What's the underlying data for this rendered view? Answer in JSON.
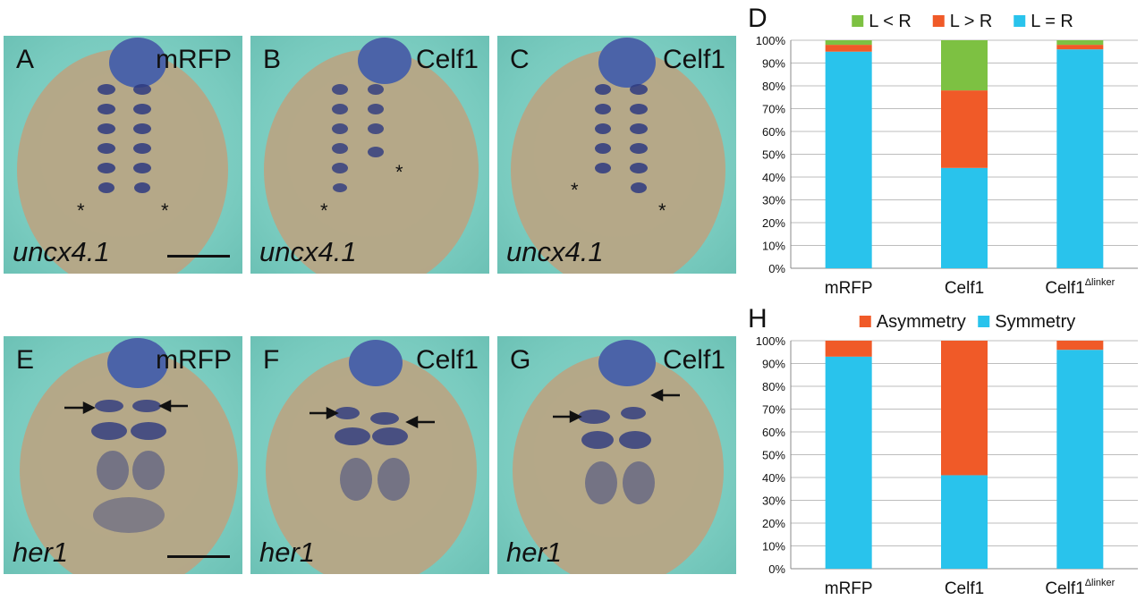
{
  "panels_top": [
    {
      "letter": "A",
      "condition": "mRFP",
      "gene": "uncx4.1",
      "scale_bar": true
    },
    {
      "letter": "B",
      "condition": "Celf1",
      "gene": "uncx4.1",
      "scale_bar": false
    },
    {
      "letter": "C",
      "condition": "Celf1",
      "gene": "uncx4.1",
      "scale_bar": false
    }
  ],
  "panels_bottom": [
    {
      "letter": "E",
      "condition": "mRFP",
      "gene": "her1",
      "scale_bar": true
    },
    {
      "letter": "F",
      "condition": "Celf1",
      "gene": "her1",
      "scale_bar": false
    },
    {
      "letter": "G",
      "condition": "Celf1",
      "gene": "her1",
      "scale_bar": false
    }
  ],
  "colors": {
    "green": "#7dc142",
    "orange": "#f05a28",
    "blue": "#29c3ec"
  },
  "chart_data": [
    {
      "panel_letter": "D",
      "type": "bar",
      "stacked": true,
      "categories": [
        "mRFP",
        "Celf1",
        "Celf1"
      ],
      "category_superscripts": [
        "",
        "",
        "Δlinker"
      ],
      "series": [
        {
          "name": "L = R",
          "color": "#29c3ec",
          "values": [
            95,
            44,
            96
          ]
        },
        {
          "name": "L > R",
          "color": "#f05a28",
          "values": [
            3,
            34,
            2
          ]
        },
        {
          "name": "L < R",
          "color": "#7dc142",
          "values": [
            2,
            22,
            2
          ]
        }
      ],
      "legend_order": [
        "L < R",
        "L > R",
        "L = R"
      ],
      "legend_position": "top",
      "yticks": [
        "0%",
        "10%",
        "20%",
        "30%",
        "40%",
        "50%",
        "60%",
        "70%",
        "80%",
        "90%",
        "100%"
      ],
      "ylim": [
        0,
        100
      ],
      "grid": true
    },
    {
      "panel_letter": "H",
      "type": "bar",
      "stacked": true,
      "categories": [
        "mRFP",
        "Celf1",
        "Celf1"
      ],
      "category_superscripts": [
        "",
        "",
        "Δlinker"
      ],
      "series": [
        {
          "name": "Symmetry",
          "color": "#29c3ec",
          "values": [
            93,
            41,
            96
          ]
        },
        {
          "name": "Asymmetry",
          "color": "#f05a28",
          "values": [
            7,
            59,
            4
          ]
        }
      ],
      "legend_order": [
        "Asymmetry",
        "Symmetry"
      ],
      "legend_position": "top",
      "yticks": [
        "0%",
        "10%",
        "20%",
        "30%",
        "40%",
        "50%",
        "60%",
        "70%",
        "80%",
        "90%",
        "100%"
      ],
      "ylim": [
        0,
        100
      ],
      "grid": true
    }
  ]
}
